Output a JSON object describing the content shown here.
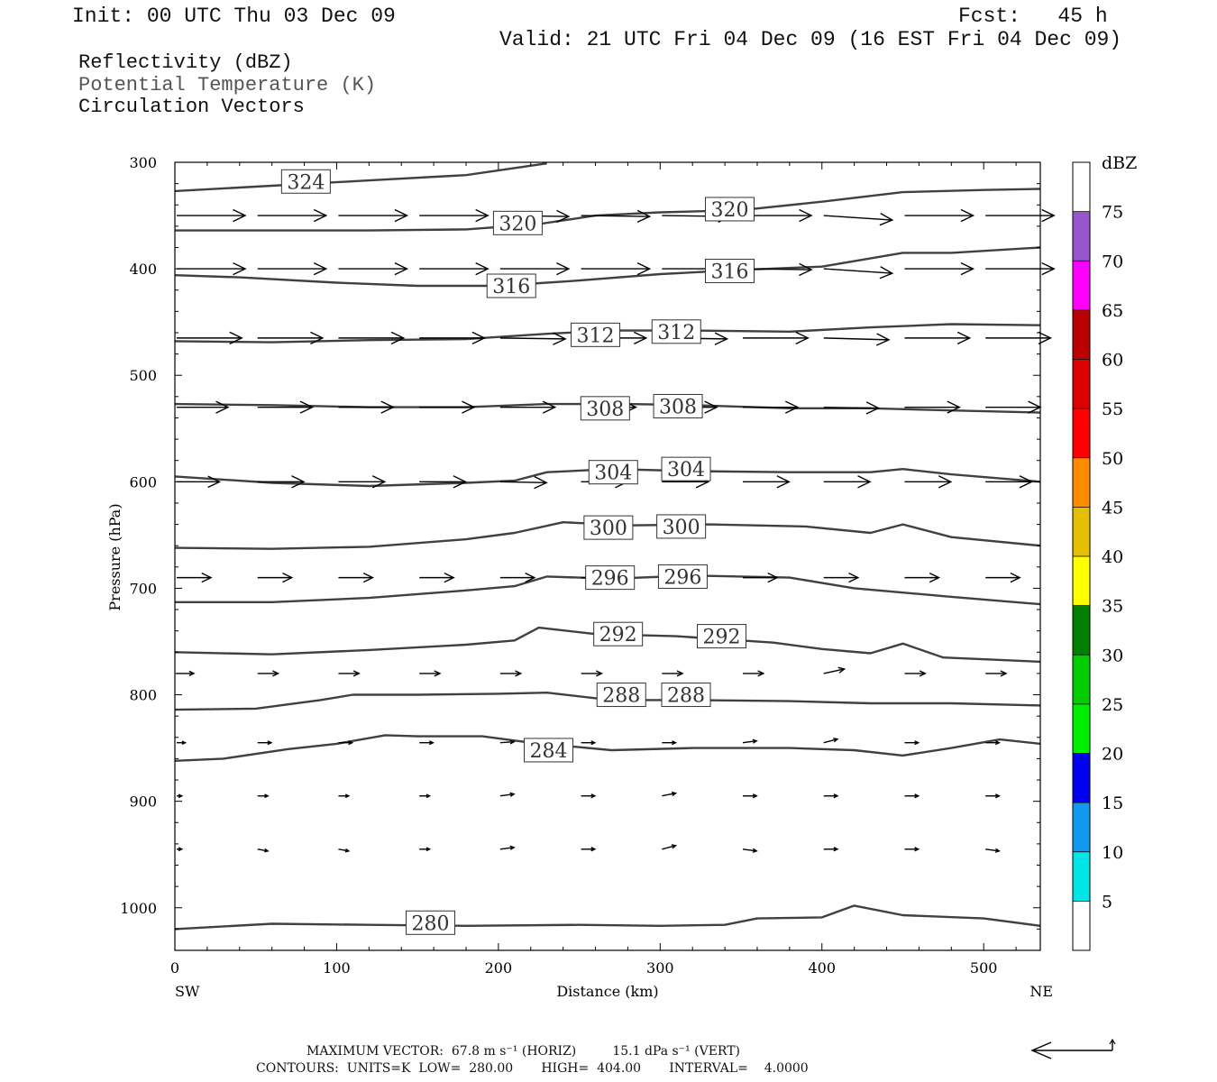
{
  "header": {
    "init": "Init: 00 UTC Thu 03 Dec 09",
    "fcst": "Fcst:   45 h",
    "valid": "Valid: 21 UTC Fri 04 Dec 09 (16 EST Fri 04 Dec 09)",
    "field1": "Reflectivity (dBZ)",
    "field2": "Potential Temperature (K)",
    "field3": "Circulation Vectors"
  },
  "footer": {
    "max_vector": "MAXIMUM VECTOR:  67.8 m s⁻¹ (HORIZ)         15.1 dPa s⁻¹ (VERT)",
    "contours": "CONTOURS:  UNITS=K  LOW=  280.00       HIGH=  404.00       INTERVAL=    4.0000"
  },
  "colors": {
    "contour": "#404040",
    "vector": "#000000",
    "frame": "#000000",
    "subtitle_gray": "#555555"
  },
  "chart_data": {
    "type": "cross-section",
    "xlabel": "Distance (km)",
    "ylabel": "Pressure (hPa)",
    "xlim": [
      0,
      535
    ],
    "ylim": [
      1040,
      300
    ],
    "x_ticks": [
      0,
      100,
      200,
      300,
      400,
      500
    ],
    "y_ticks": [
      300,
      400,
      500,
      600,
      700,
      800,
      900,
      1000
    ],
    "x_end_labels": {
      "left": "SW",
      "right": "NE"
    },
    "colorbar": {
      "unit": "dBZ",
      "levels": [
        5,
        10,
        15,
        20,
        25,
        30,
        35,
        40,
        45,
        50,
        55,
        60,
        65,
        70,
        75
      ],
      "colors": [
        "#00e5e5",
        "#1199ee",
        "#0000ee",
        "#00ee00",
        "#00cc00",
        "#007f00",
        "#ffff00",
        "#e5c000",
        "#ff8c00",
        "#ff0000",
        "#dd0000",
        "#bb0000",
        "#ff00ff",
        "#9955cc",
        "#ffffff"
      ]
    },
    "theta_contours": [
      {
        "value": 324,
        "points": [
          [
            0,
            327
          ],
          [
            60,
            322
          ],
          [
            120,
            317
          ],
          [
            180,
            312
          ],
          [
            230,
            301
          ]
        ],
        "labels": [
          [
            81,
            318
          ]
        ]
      },
      {
        "value": 320,
        "points": [
          [
            0,
            364
          ],
          [
            60,
            364
          ],
          [
            120,
            364
          ],
          [
            180,
            363
          ],
          [
            225,
            358
          ],
          [
            260,
            350
          ],
          [
            300,
            347
          ],
          [
            350,
            345
          ],
          [
            400,
            337
          ],
          [
            450,
            328
          ],
          [
            500,
            326
          ],
          [
            535,
            325
          ]
        ],
        "labels": [
          [
            212,
            357
          ],
          [
            343,
            344
          ]
        ]
      },
      {
        "value": 316,
        "points": [
          [
            0,
            406
          ],
          [
            40,
            408
          ],
          [
            100,
            413
          ],
          [
            150,
            416
          ],
          [
            200,
            416
          ],
          [
            250,
            411
          ],
          [
            300,
            405
          ],
          [
            350,
            401
          ],
          [
            400,
            398
          ],
          [
            450,
            385
          ],
          [
            480,
            385
          ],
          [
            535,
            380
          ]
        ],
        "labels": [
          [
            208,
            416
          ],
          [
            343,
            402
          ]
        ]
      },
      {
        "value": 312,
        "points": [
          [
            0,
            468
          ],
          [
            60,
            469
          ],
          [
            120,
            467
          ],
          [
            180,
            466
          ],
          [
            230,
            461
          ],
          [
            270,
            458
          ],
          [
            320,
            458
          ],
          [
            380,
            459
          ],
          [
            430,
            455
          ],
          [
            480,
            452
          ],
          [
            535,
            453
          ]
        ],
        "labels": [
          [
            260,
            462
          ],
          [
            310,
            459
          ]
        ]
      },
      {
        "value": 308,
        "points": [
          [
            0,
            527
          ],
          [
            60,
            528
          ],
          [
            120,
            530
          ],
          [
            180,
            530
          ],
          [
            230,
            527
          ],
          [
            280,
            527
          ],
          [
            320,
            528
          ],
          [
            380,
            531
          ],
          [
            430,
            531
          ],
          [
            480,
            533
          ],
          [
            535,
            535
          ]
        ],
        "labels": [
          [
            266,
            531
          ],
          [
            311,
            529
          ]
        ]
      },
      {
        "value": 304,
        "points": [
          [
            0,
            595
          ],
          [
            60,
            601
          ],
          [
            120,
            604
          ],
          [
            180,
            601
          ],
          [
            210,
            599
          ],
          [
            230,
            591
          ],
          [
            270,
            588
          ],
          [
            320,
            590
          ],
          [
            380,
            591
          ],
          [
            430,
            591
          ],
          [
            450,
            588
          ],
          [
            480,
            593
          ],
          [
            535,
            600
          ]
        ],
        "labels": [
          [
            271,
            591
          ],
          [
            316,
            588
          ]
        ]
      },
      {
        "value": 300,
        "points": [
          [
            0,
            662
          ],
          [
            60,
            663
          ],
          [
            120,
            661
          ],
          [
            180,
            654
          ],
          [
            210,
            648
          ],
          [
            240,
            638
          ],
          [
            280,
            641
          ],
          [
            330,
            640
          ],
          [
            390,
            642
          ],
          [
            430,
            648
          ],
          [
            450,
            640
          ],
          [
            480,
            652
          ],
          [
            535,
            660
          ]
        ],
        "labels": [
          [
            268,
            643
          ],
          [
            313,
            642
          ]
        ]
      },
      {
        "value": 296,
        "points": [
          [
            0,
            713
          ],
          [
            60,
            713
          ],
          [
            120,
            709
          ],
          [
            180,
            702
          ],
          [
            210,
            698
          ],
          [
            230,
            689
          ],
          [
            270,
            691
          ],
          [
            320,
            688
          ],
          [
            380,
            690
          ],
          [
            420,
            700
          ],
          [
            450,
            704
          ],
          [
            480,
            708
          ],
          [
            535,
            715
          ]
        ],
        "labels": [
          [
            269,
            690
          ],
          [
            314,
            689
          ]
        ]
      },
      {
        "value": 292,
        "points": [
          [
            0,
            760
          ],
          [
            60,
            762
          ],
          [
            120,
            758
          ],
          [
            180,
            753
          ],
          [
            210,
            749
          ],
          [
            225,
            737
          ],
          [
            260,
            743
          ],
          [
            310,
            745
          ],
          [
            370,
            751
          ],
          [
            400,
            757
          ],
          [
            430,
            761
          ],
          [
            450,
            752
          ],
          [
            475,
            765
          ],
          [
            535,
            769
          ]
        ],
        "labels": [
          [
            274,
            743
          ],
          [
            338,
            745
          ]
        ]
      },
      {
        "value": 288,
        "points": [
          [
            0,
            814
          ],
          [
            50,
            813
          ],
          [
            90,
            805
          ],
          [
            110,
            800
          ],
          [
            150,
            800
          ],
          [
            200,
            799
          ],
          [
            230,
            798
          ],
          [
            270,
            805
          ],
          [
            320,
            805
          ],
          [
            380,
            806
          ],
          [
            430,
            808
          ],
          [
            480,
            808
          ],
          [
            535,
            810
          ]
        ],
        "labels": [
          [
            276,
            800
          ],
          [
            316,
            800
          ]
        ]
      },
      {
        "value": 284,
        "points": [
          [
            0,
            862
          ],
          [
            30,
            860
          ],
          [
            70,
            851
          ],
          [
            100,
            846
          ],
          [
            130,
            838
          ],
          [
            150,
            839
          ],
          [
            190,
            839
          ],
          [
            220,
            845
          ],
          [
            270,
            852
          ],
          [
            320,
            850
          ],
          [
            380,
            850
          ],
          [
            420,
            852
          ],
          [
            450,
            857
          ],
          [
            480,
            850
          ],
          [
            510,
            842
          ],
          [
            535,
            846
          ]
        ],
        "labels": [
          [
            231,
            852
          ]
        ]
      },
      {
        "value": 280,
        "points": [
          [
            0,
            1020
          ],
          [
            60,
            1015
          ],
          [
            120,
            1016
          ],
          [
            180,
            1017
          ],
          [
            250,
            1016
          ],
          [
            300,
            1017
          ],
          [
            340,
            1016
          ],
          [
            360,
            1010
          ],
          [
            400,
            1009
          ],
          [
            420,
            998
          ],
          [
            450,
            1007
          ],
          [
            500,
            1010
          ],
          [
            535,
            1017
          ]
        ],
        "labels": [
          [
            158,
            1014
          ]
        ]
      }
    ],
    "vector_field": {
      "x": [
        0,
        50,
        100,
        150,
        200,
        250,
        300,
        350,
        400,
        450,
        500
      ],
      "p": [
        350,
        400,
        465,
        530,
        600,
        690,
        780,
        845,
        895,
        945
      ],
      "u": [
        [
          40,
          40,
          40,
          40,
          40,
          40,
          40,
          40,
          40,
          40,
          40
        ],
        [
          40,
          40,
          40,
          40,
          40,
          40,
          40,
          40,
          40,
          40,
          40
        ],
        [
          38,
          38,
          38,
          38,
          38,
          38,
          38,
          38,
          38,
          38,
          38
        ],
        [
          30,
          32,
          32,
          32,
          32,
          32,
          32,
          32,
          32,
          32,
          32
        ],
        [
          25,
          27,
          27,
          27,
          27,
          27,
          27,
          27,
          27,
          27,
          27
        ],
        [
          20,
          20,
          20,
          20,
          20,
          20,
          20,
          20,
          20,
          20,
          20
        ],
        [
          10,
          12,
          12,
          12,
          12,
          12,
          12,
          12,
          12,
          12,
          12
        ],
        [
          5,
          8,
          8,
          8,
          8,
          8,
          8,
          8,
          8,
          8,
          8
        ],
        [
          3,
          6,
          6,
          6,
          8,
          8,
          8,
          8,
          8,
          8,
          8
        ],
        [
          3,
          6,
          6,
          6,
          8,
          8,
          8,
          8,
          8,
          8,
          8
        ]
      ],
      "w": [
        [
          0,
          0,
          0,
          0,
          1,
          1,
          1,
          0,
          5,
          0,
          0
        ],
        [
          0,
          0,
          0,
          0,
          0,
          0,
          0,
          1,
          5,
          0,
          0
        ],
        [
          0,
          0,
          0,
          0,
          1,
          0,
          1,
          0,
          2,
          0,
          0
        ],
        [
          0,
          0,
          0,
          0,
          0,
          0,
          0,
          0,
          1,
          0,
          0
        ],
        [
          0,
          0,
          0,
          0,
          1,
          0,
          0,
          0,
          0,
          0,
          0
        ],
        [
          0,
          0,
          0,
          0,
          0,
          0,
          0,
          0,
          0,
          0,
          0
        ],
        [
          0,
          0,
          0,
          0,
          0,
          0,
          0,
          0,
          -5,
          0,
          0
        ],
        [
          0,
          0,
          0,
          0,
          -1,
          0,
          0,
          -2,
          -4,
          0,
          0
        ],
        [
          0,
          0,
          0,
          0,
          -2,
          0,
          -3,
          0,
          0,
          0,
          0
        ],
        [
          0,
          2,
          2,
          0,
          -2,
          0,
          -4,
          2,
          0,
          0,
          2
        ]
      ]
    }
  }
}
